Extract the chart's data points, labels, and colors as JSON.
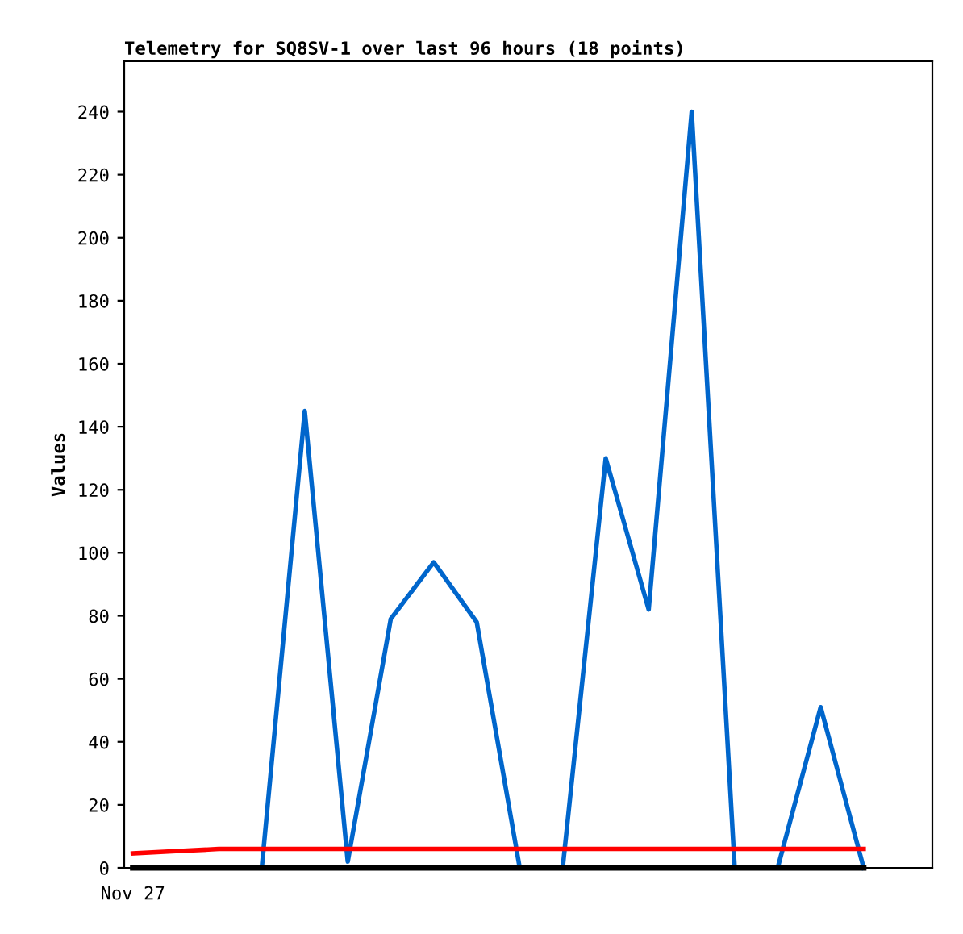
{
  "chart_data": {
    "type": "line",
    "title": "Telemetry for SQ8SV-1 over last 96 hours (18 points)",
    "ylabel": "Values",
    "categories": [
      "Nov 27",
      null,
      null,
      null,
      null,
      null,
      null,
      null,
      null,
      null,
      null,
      null,
      null,
      null,
      null,
      null,
      null,
      null
    ],
    "series": [
      {
        "color": "#0066cc",
        "values": [
          null,
          null,
          null,
          0,
          145,
          2,
          79,
          97,
          78,
          0,
          0,
          130,
          82,
          240,
          0,
          0,
          51,
          0
        ]
      },
      {
        "color": "#ff0000",
        "values": [
          4.6,
          5.3,
          6,
          6,
          6,
          6,
          6,
          6,
          6,
          6,
          6,
          6,
          6,
          6,
          6,
          6,
          6,
          6
        ]
      },
      {
        "color": "#000000",
        "values": [
          0,
          0,
          0,
          0,
          0,
          0,
          0,
          0,
          0,
          0,
          0,
          0,
          0,
          0,
          0,
          0,
          0,
          0
        ]
      }
    ],
    "ylim": [
      0,
      256
    ],
    "yticks": [
      0,
      20,
      40,
      60,
      80,
      100,
      120,
      140,
      160,
      180,
      200,
      220,
      240
    ],
    "grid": false,
    "legend": false,
    "marker": "none",
    "line_style": "solid"
  }
}
